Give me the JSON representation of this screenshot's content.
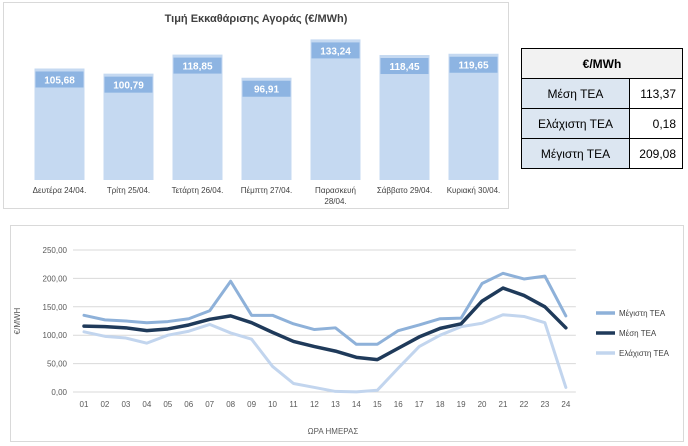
{
  "chart_data": [
    {
      "type": "bar",
      "title": "Τιμή Εκκαθάρισης Αγοράς (€/MWh)",
      "categories": [
        [
          "Δευτέρα 24/04."
        ],
        [
          "Τρίτη 25/04."
        ],
        [
          "Τετάρτη 26/04."
        ],
        [
          "Πέμπτη 27/04."
        ],
        [
          "Παρασκευή",
          "28/04."
        ],
        [
          "Σάββατο 29/04."
        ],
        [
          "Κυριακή 30/04."
        ]
      ],
      "values": [
        105.68,
        100.79,
        118.85,
        96.91,
        133.24,
        118.45,
        119.65
      ],
      "value_labels": [
        "105,68",
        "100,79",
        "118,85",
        "96,91",
        "133,24",
        "118,45",
        "119,65"
      ],
      "ylim": [
        0,
        145
      ],
      "bar_color": "#c5d9f1",
      "label_bg": "#8db4e2"
    },
    {
      "type": "line",
      "xlabel": "ΩΡΑ ΗΜΕΡΑΣ",
      "ylabel": "€/MWH",
      "x": [
        "01",
        "02",
        "03",
        "04",
        "05",
        "06",
        "07",
        "08",
        "09",
        "10",
        "11",
        "12",
        "13",
        "14",
        "15",
        "16",
        "17",
        "18",
        "19",
        "20",
        "21",
        "22",
        "23",
        "24"
      ],
      "yticks": [
        "0,00",
        "50,00",
        "100,00",
        "150,00",
        "200,00",
        "250,00"
      ],
      "ylim": [
        0,
        250
      ],
      "grid": true,
      "legend_position": "right",
      "series": [
        {
          "name": "Μέγιστη ΤΕΑ",
          "color": "#8eb1d9",
          "values": [
            135,
            127,
            125,
            122,
            124,
            129,
            143,
            195,
            135,
            135,
            120,
            110,
            113,
            84,
            84,
            108,
            118,
            129,
            130,
            191,
            209,
            199,
            204,
            134
          ]
        },
        {
          "name": "Μέση ΤΕΑ",
          "color": "#1f3a5a",
          "values": [
            116,
            115,
            113,
            108,
            111,
            118,
            128,
            134,
            122,
            105,
            89,
            80,
            72,
            61,
            57,
            77,
            97,
            112,
            120,
            160,
            183,
            170,
            150,
            113
          ]
        },
        {
          "name": "Ελάχιστη ΤΕΑ",
          "color": "#c2d5ee",
          "values": [
            106,
            98,
            95,
            86,
            100,
            107,
            119,
            104,
            93,
            45,
            15,
            8,
            1,
            0.18,
            3,
            42,
            80,
            100,
            115,
            121,
            136,
            133,
            122,
            8
          ]
        }
      ]
    }
  ],
  "stats_table": {
    "header": "€/MWh",
    "rows": [
      {
        "label": "Μέση ΤΕΑ",
        "value": "113,37"
      },
      {
        "label": "Ελάχιστη ΤΕΑ",
        "value": "0,18"
      },
      {
        "label": "Μέγιστη ΤΕΑ",
        "value": "209,08"
      }
    ]
  }
}
